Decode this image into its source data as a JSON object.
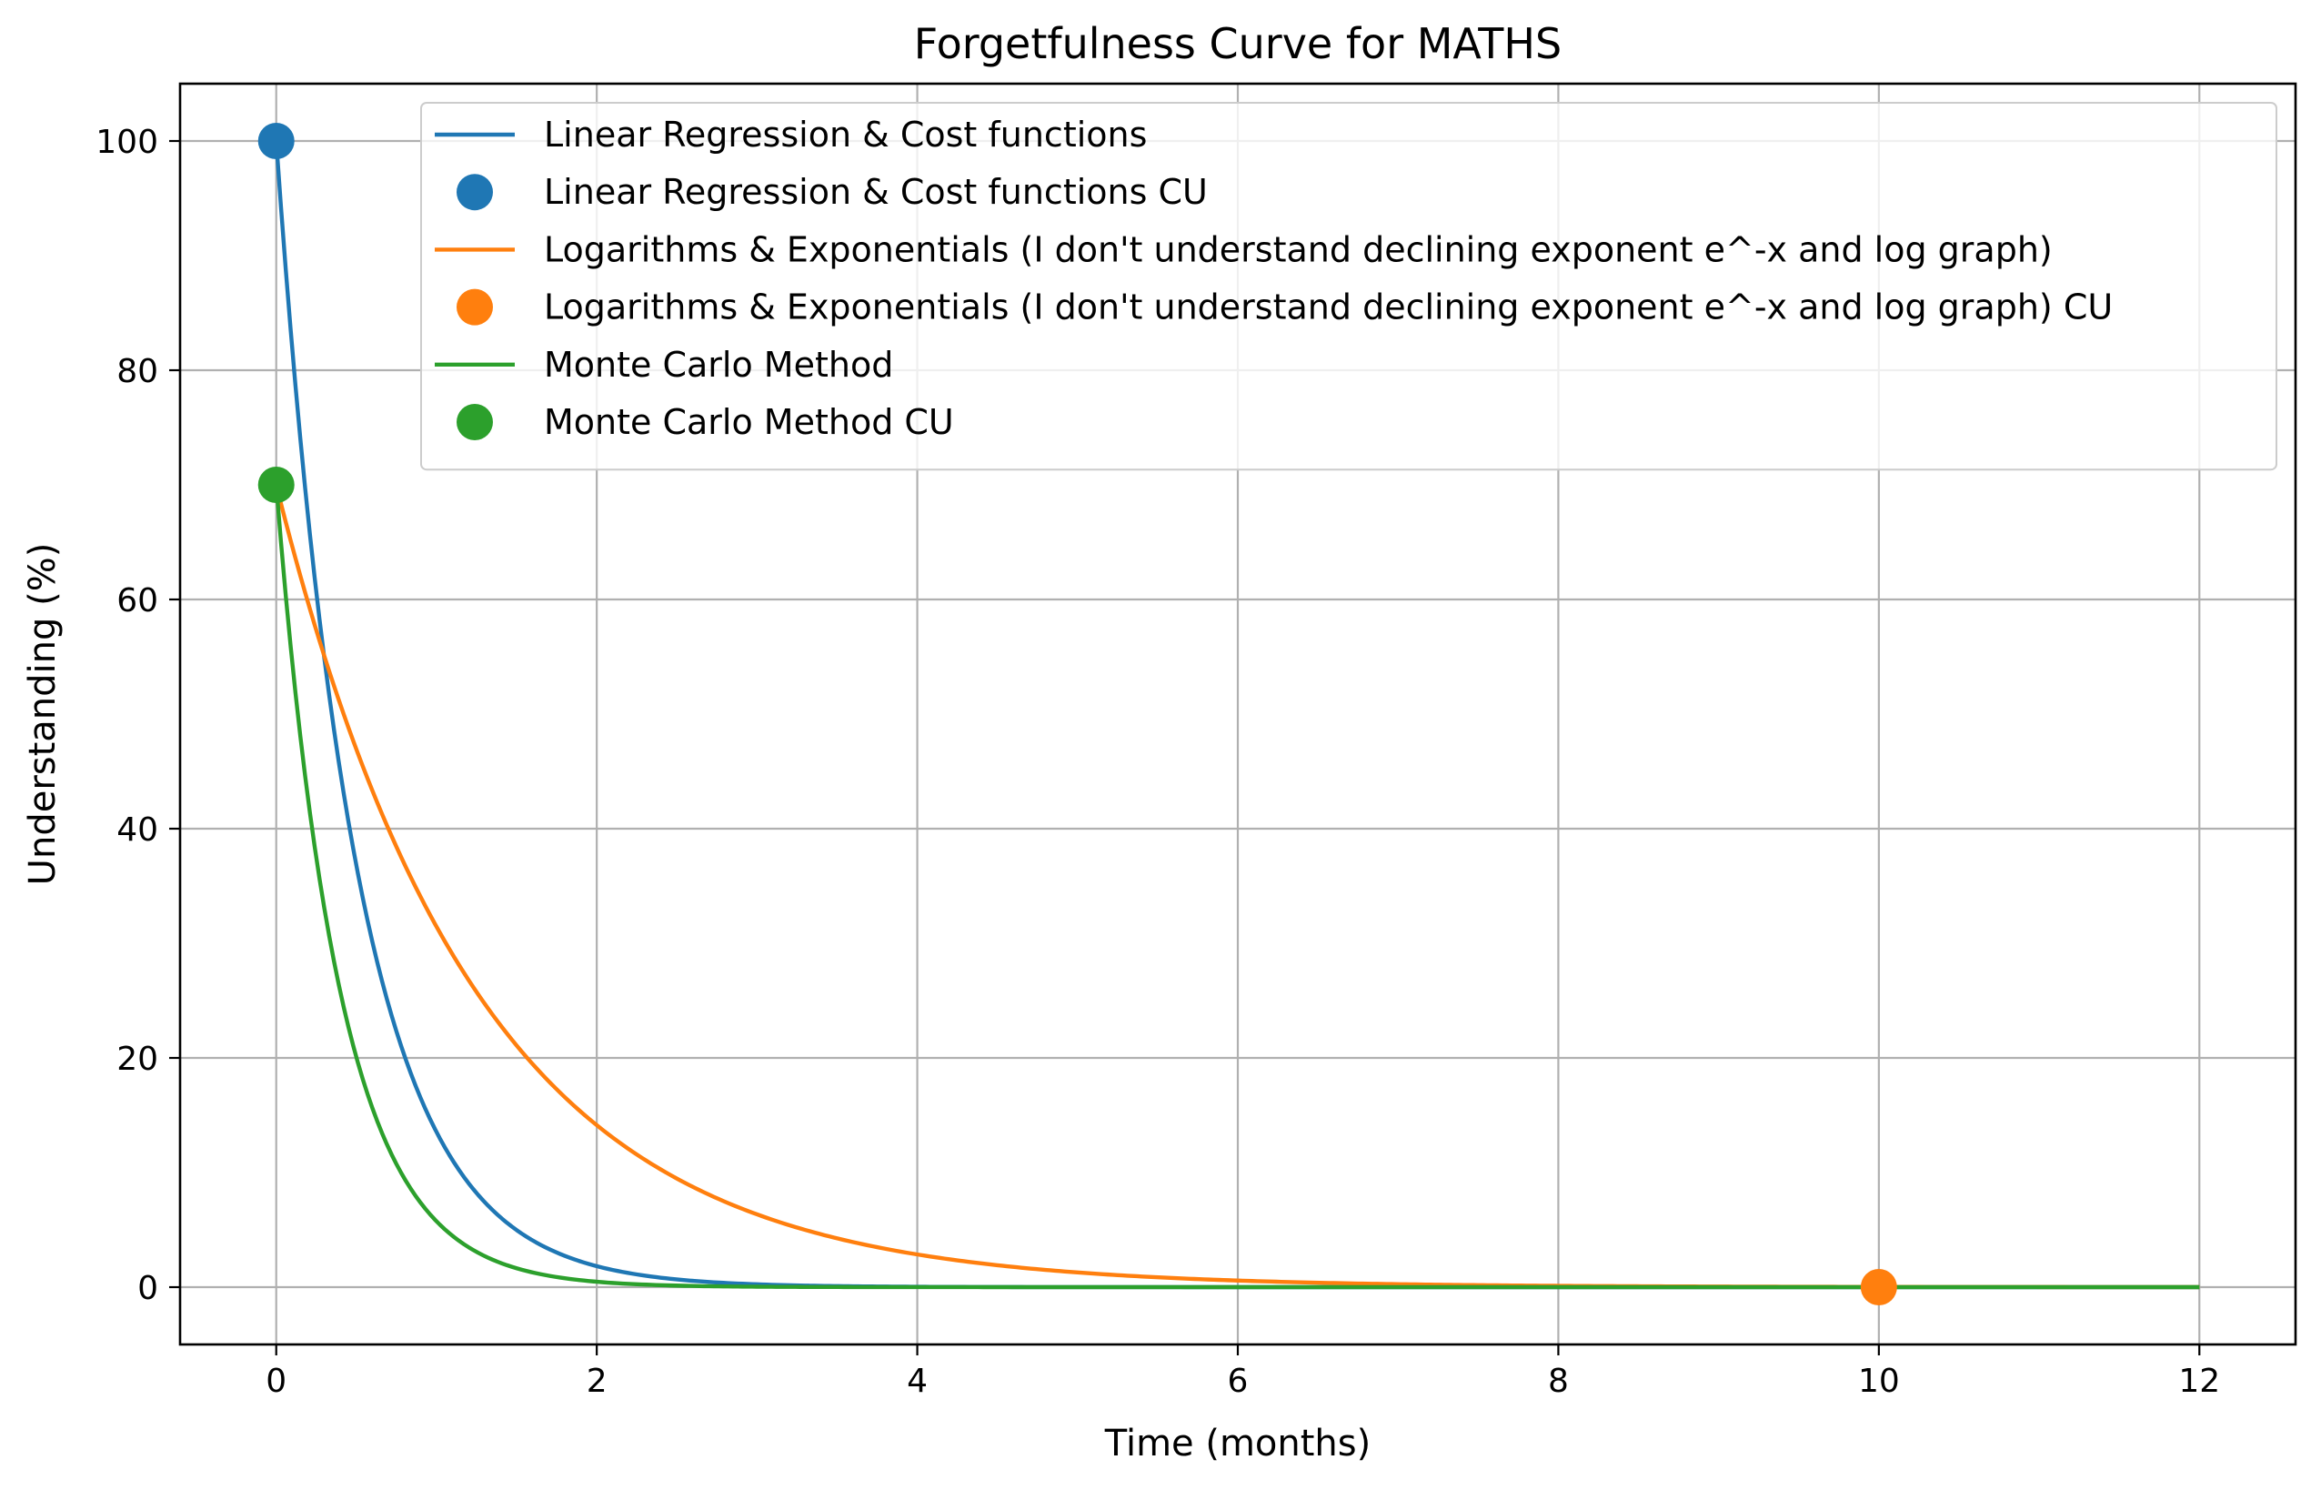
{
  "chart_data": {
    "type": "line",
    "title": "Forgetfulness Curve for MATHS",
    "xlabel": "Time (months)",
    "ylabel": "Understanding (%)",
    "xlim": [
      -0.6,
      12.6
    ],
    "ylim": [
      -5,
      105
    ],
    "xticks": [
      0,
      2,
      4,
      6,
      8,
      10,
      12
    ],
    "yticks": [
      0,
      20,
      40,
      60,
      80,
      100
    ],
    "grid": true,
    "legend_position": "top-right",
    "series": [
      {
        "name": "Linear Regression & Cost functions",
        "color": "#1f77b4",
        "curve": {
          "initial": 100,
          "decay_rate": 2.0,
          "x_start": 0,
          "x_end": 12
        },
        "x": [
          0,
          0.25,
          0.5,
          0.75,
          1,
          1.5,
          2,
          3,
          4,
          6,
          8,
          10,
          12
        ],
        "values": [
          100,
          60.7,
          36.8,
          22.3,
          13.5,
          5.0,
          1.8,
          0.2,
          0.0,
          0.0,
          0.0,
          0.0,
          0.0
        ]
      },
      {
        "name": "Linear Regression & Cost functions CU",
        "color": "#1f77b4",
        "markers": true,
        "points": [
          {
            "x": 0,
            "y": 100
          }
        ]
      },
      {
        "name": "Logarithms & Exponentials (I don't understand declining exponent e^-x and log graph)",
        "color": "#ff7f0e",
        "curve": {
          "initial": 70,
          "decay_rate": 0.8,
          "x_start": 0,
          "x_end": 12
        },
        "x": [
          0,
          0.5,
          1,
          1.5,
          2,
          3,
          4,
          5,
          6,
          8,
          10,
          12
        ],
        "values": [
          70,
          46.9,
          31.5,
          21.1,
          14.1,
          6.4,
          2.9,
          1.3,
          0.6,
          0.1,
          0.0,
          0.0
        ]
      },
      {
        "name": "Logarithms & Exponentials (I don't understand declining exponent e^-x and log graph) CU",
        "color": "#ff7f0e",
        "markers": true,
        "points": [
          {
            "x": 10,
            "y": 0
          }
        ]
      },
      {
        "name": "Monte Carlo Method",
        "color": "#2ca02c",
        "curve": {
          "initial": 70,
          "decay_rate": 2.5,
          "x_start": 0,
          "x_end": 12
        },
        "x": [
          0,
          0.25,
          0.5,
          0.75,
          1,
          1.5,
          2,
          3,
          4,
          6,
          8,
          10,
          12
        ],
        "values": [
          70,
          37.5,
          20.1,
          10.7,
          5.7,
          1.6,
          0.5,
          0.0,
          0.0,
          0.0,
          0.0,
          0.0,
          0.0
        ]
      },
      {
        "name": "Monte Carlo Method CU",
        "color": "#2ca02c",
        "markers": true,
        "points": [
          {
            "x": 0,
            "y": 70
          }
        ]
      }
    ]
  }
}
